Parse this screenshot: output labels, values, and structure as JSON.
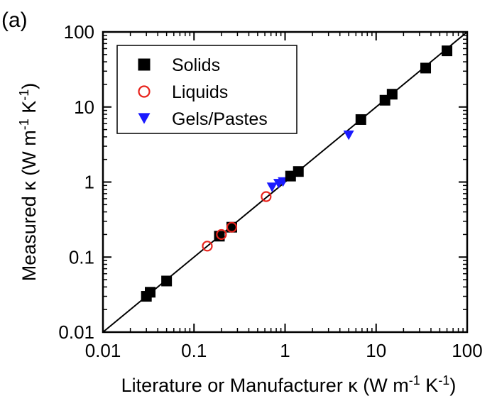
{
  "panel_label": "(a)",
  "chart_data": {
    "type": "scatter",
    "xscale": "log",
    "yscale": "log",
    "xlim": [
      0.01,
      100
    ],
    "ylim": [
      0.01,
      100
    ],
    "xticks": [
      "0.01",
      "0.1",
      "1",
      "10",
      "100"
    ],
    "yticks": [
      "0.01",
      "0.1",
      "1",
      "10",
      "100"
    ],
    "xlabel": {
      "text": "Literature or Manufacturer κ (W m",
      "sup1": "-1",
      "mid": " K",
      "sup2": "-1",
      "end": ")"
    },
    "ylabel": {
      "text": "Measured κ (W m",
      "sup1": "-1",
      "mid": " K",
      "sup2": "-1",
      "end": ")"
    },
    "legend_position": "top-left",
    "reference_line": {
      "type": "y=x",
      "color": "#000000"
    },
    "series": [
      {
        "name": "Solids",
        "marker": "square",
        "color": "#000000",
        "points": [
          [
            0.03,
            0.03
          ],
          [
            0.033,
            0.034
          ],
          [
            0.05,
            0.048
          ],
          [
            0.19,
            0.19
          ],
          [
            0.26,
            0.25
          ],
          [
            1.15,
            1.2
          ],
          [
            1.4,
            1.38
          ],
          [
            6.8,
            6.8
          ],
          [
            12.5,
            12.3
          ],
          [
            15,
            14.8
          ],
          [
            35,
            33
          ],
          [
            60,
            56
          ]
        ]
      },
      {
        "name": "Liquids",
        "marker": "circle-open",
        "color": "#e8241d",
        "points": [
          [
            0.14,
            0.14
          ],
          [
            0.2,
            0.2
          ],
          [
            0.26,
            0.25
          ],
          [
            0.62,
            0.64
          ]
        ]
      },
      {
        "name": "Gels/Pastes",
        "marker": "triangle-down",
        "color": "#1a1aff",
        "points": [
          [
            0.72,
            0.85
          ],
          [
            0.85,
            0.95
          ],
          [
            0.95,
            1.0
          ],
          [
            5,
            4.2
          ]
        ]
      }
    ]
  }
}
